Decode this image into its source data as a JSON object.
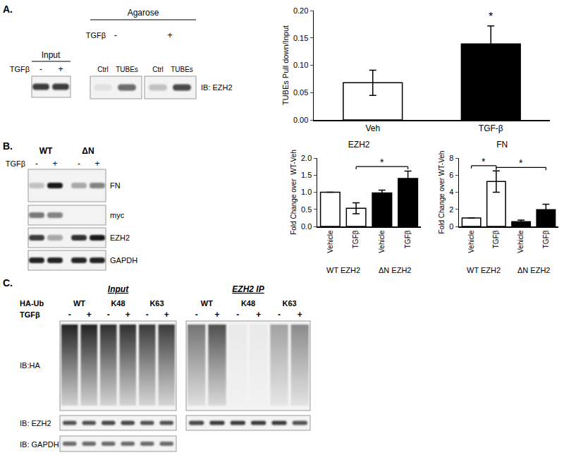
{
  "chart_data": [
    {
      "type": "bar",
      "categories": [
        "Veh",
        "TGF-β"
      ],
      "values": [
        0.068,
        0.139
      ],
      "errors": [
        0.023,
        0.033
      ],
      "colors": [
        "#ffffff",
        "#000000"
      ],
      "ylabel": "TUBEs Pull down/Input",
      "ylim": [
        0,
        0.2
      ],
      "yticks": [
        {
          "value": 0,
          "label": "0.00"
        },
        {
          "value": 0.05,
          "label": "0.05"
        },
        {
          "value": 0.1,
          "label": "0.10"
        },
        {
          "value": 0.15,
          "label": "0.15"
        },
        {
          "value": 0.2,
          "label": "0.20"
        }
      ],
      "annotations": [
        {
          "x": 1,
          "y": 0.175,
          "text": "*"
        }
      ]
    },
    {
      "type": "bar",
      "title": "EZH2",
      "categories": [
        "Vehicle",
        "TGFβ",
        "Vehicle",
        "TGFβ"
      ],
      "groups": [
        {
          "text": "WT EZH2",
          "from": 0,
          "to": 1
        },
        {
          "text": "ΔN EZH2",
          "from": 2,
          "to": 3
        }
      ],
      "values": [
        1.0,
        0.53,
        0.98,
        1.4
      ],
      "errors": [
        0,
        0.16,
        0.08,
        0.22
      ],
      "colors": [
        "#ffffff",
        "#ffffff",
        "#000000",
        "#000000"
      ],
      "ylabel": "Fold Change over  WT-Veh",
      "ylim": [
        0,
        2.0
      ],
      "yticks": [
        {
          "value": 0,
          "label": "0.0"
        },
        {
          "value": 0.5,
          "label": "0.5"
        },
        {
          "value": 1.0,
          "label": "1.0"
        },
        {
          "value": 1.5,
          "label": "1.5"
        },
        {
          "value": 2.0,
          "label": "2.0"
        }
      ],
      "significance": [
        {
          "from": 1,
          "to": 3,
          "y": 1.75,
          "text": "*"
        }
      ]
    },
    {
      "type": "bar",
      "title": "FN",
      "categories": [
        "Vehicle",
        "TGFβ",
        "Vehicle",
        "TGFβ"
      ],
      "groups": [
        {
          "text": "WT EZH2",
          "from": 0,
          "to": 1
        },
        {
          "text": "ΔN EZH2",
          "from": 2,
          "to": 3
        }
      ],
      "values": [
        1.0,
        5.25,
        0.55,
        1.95
      ],
      "errors": [
        0,
        1.25,
        0.2,
        0.65
      ],
      "colors": [
        "#ffffff",
        "#ffffff",
        "#000000",
        "#000000"
      ],
      "ylabel": "Fold Change over WT-Veh",
      "ylim": [
        0,
        8
      ],
      "yticks": [
        0,
        2,
        4,
        6,
        8
      ],
      "significance": [
        {
          "from": 0,
          "to": 1,
          "y": 7.1,
          "text": "*"
        },
        {
          "from": 1,
          "to": 3,
          "y": 6.9,
          "text": "*"
        }
      ]
    }
  ],
  "panels": [
    "A.",
    "B.",
    "C."
  ],
  "blot_A": {
    "input_title": "Input",
    "pulldown_title": "Agarose",
    "treatment": "TGFβ",
    "signs": [
      "-",
      "+"
    ],
    "lane_labels": [
      "Ctrl",
      "TUBEs"
    ],
    "probe": "IB: EZH2",
    "input_bands": [
      0.8,
      0.8
    ],
    "pulldown_bands": [
      [
        0.08,
        0.6
      ],
      [
        0.2,
        0.75
      ]
    ]
  },
  "blot_B": {
    "groups": [
      "WT",
      "ΔN"
    ],
    "treatment": "TGFβ",
    "signs": [
      "-",
      "+",
      "-",
      "+"
    ],
    "rows": [
      {
        "label": "FN",
        "bands": [
          0.2,
          0.95,
          0.3,
          0.5
        ]
      },
      {
        "label": "myc",
        "bands": [
          0.55,
          0.5,
          0,
          0
        ]
      },
      {
        "label": "EZH2",
        "bands": [
          0.8,
          0.35,
          0.85,
          0.95
        ]
      },
      {
        "label": "GAPDH",
        "bands": [
          0.9,
          0.9,
          0.9,
          0.9
        ]
      }
    ]
  },
  "blot_C": {
    "construct_label": "HA-Ub",
    "constructs": [
      "WT",
      "K48",
      "K63"
    ],
    "treatment": "TGFβ",
    "signs": [
      "-",
      "+"
    ],
    "sections": [
      {
        "title": "Input",
        "smear": [
          0.9,
          0.9,
          0.85,
          0.85,
          0.8,
          0.8
        ],
        "ezh2": [
          0.7,
          0.7,
          0.75,
          0.75,
          0.7,
          0.7
        ],
        "gapdh": [
          0.6,
          0.6,
          0.6,
          0.6,
          0.6,
          0.6
        ]
      },
      {
        "title": "EZH2 IP",
        "smear": [
          0.55,
          0.7,
          0.04,
          0.04,
          0.35,
          0.45
        ],
        "ezh2": [
          0.75,
          0.8,
          0.8,
          0.8,
          0.8,
          0.7
        ]
      }
    ],
    "row_labels": [
      "IB:HA",
      "IB: EZH2",
      "IB: GAPDH"
    ]
  }
}
